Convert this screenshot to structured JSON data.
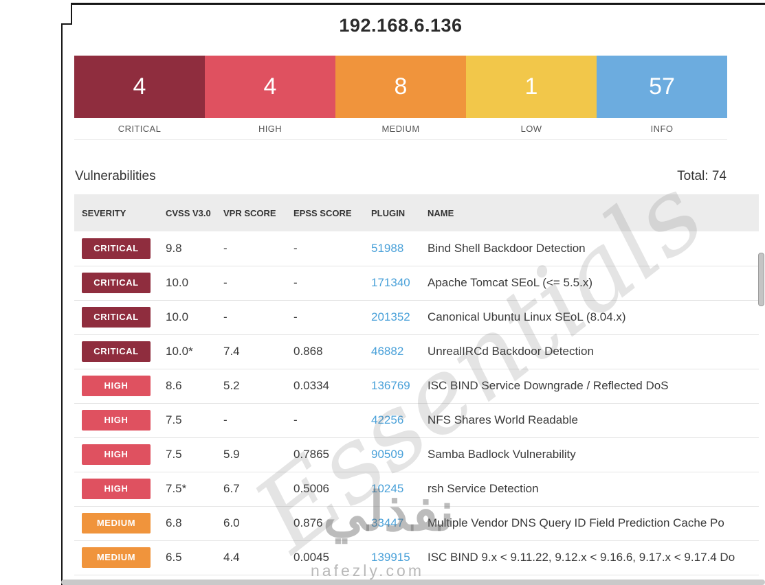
{
  "page": {
    "title": "192.168.6.136"
  },
  "summary": {
    "segments": [
      {
        "label": "CRITICAL",
        "count": "4",
        "color": "#8f2d3e"
      },
      {
        "label": "HIGH",
        "count": "4",
        "color": "#df5160"
      },
      {
        "label": "MEDIUM",
        "count": "8",
        "color": "#f0943c"
      },
      {
        "label": "LOW",
        "count": "1",
        "color": "#f2c74a"
      },
      {
        "label": "INFO",
        "count": "57",
        "color": "#6cacdf"
      }
    ]
  },
  "severity_colors": {
    "CRITICAL": "#8f2d3e",
    "HIGH": "#df5160",
    "MEDIUM": "#f0943c",
    "LOW": "#f2c74a",
    "INFO": "#6cacdf"
  },
  "vulnerabilities": {
    "heading": "Vulnerabilities",
    "total": "Total: 74",
    "columns": [
      "SEVERITY",
      "CVSS V3.0",
      "VPR SCORE",
      "EPSS SCORE",
      "PLUGIN",
      "NAME"
    ],
    "rows": [
      {
        "severity": "CRITICAL",
        "cvss": "9.8",
        "vpr": "-",
        "epss": "-",
        "plugin": "51988",
        "name": "Bind Shell Backdoor Detection"
      },
      {
        "severity": "CRITICAL",
        "cvss": "10.0",
        "vpr": "-",
        "epss": "-",
        "plugin": "171340",
        "name": "Apache Tomcat SEoL (<= 5.5.x)"
      },
      {
        "severity": "CRITICAL",
        "cvss": "10.0",
        "vpr": "-",
        "epss": "-",
        "plugin": "201352",
        "name": "Canonical Ubuntu Linux SEoL (8.04.x)"
      },
      {
        "severity": "CRITICAL",
        "cvss": "10.0*",
        "vpr": "7.4",
        "epss": "0.868",
        "plugin": "46882",
        "name": "UnrealIRCd Backdoor Detection"
      },
      {
        "severity": "HIGH",
        "cvss": "8.6",
        "vpr": "5.2",
        "epss": "0.0334",
        "plugin": "136769",
        "name": "ISC BIND Service Downgrade / Reflected DoS"
      },
      {
        "severity": "HIGH",
        "cvss": "7.5",
        "vpr": "-",
        "epss": "-",
        "plugin": "42256",
        "name": "NFS Shares World Readable"
      },
      {
        "severity": "HIGH",
        "cvss": "7.5",
        "vpr": "5.9",
        "epss": "0.7865",
        "plugin": "90509",
        "name": "Samba Badlock Vulnerability"
      },
      {
        "severity": "HIGH",
        "cvss": "7.5*",
        "vpr": "6.7",
        "epss": "0.5006",
        "plugin": "10245",
        "name": "rsh Service Detection"
      },
      {
        "severity": "MEDIUM",
        "cvss": "6.8",
        "vpr": "6.0",
        "epss": "0.876",
        "plugin": "33447",
        "name": "Multiple Vendor DNS Query ID Field Prediction Cache Po"
      },
      {
        "severity": "MEDIUM",
        "cvss": "6.5",
        "vpr": "4.4",
        "epss": "0.0045",
        "plugin": "139915",
        "name": "ISC BIND 9.x < 9.11.22, 9.12.x < 9.16.6, 9.17.x < 9.17.4 Do"
      }
    ]
  },
  "watermark": {
    "diagonal": "Essentials",
    "brand_arabic": "نفذلي",
    "brand_domain": "nafezly.com"
  }
}
